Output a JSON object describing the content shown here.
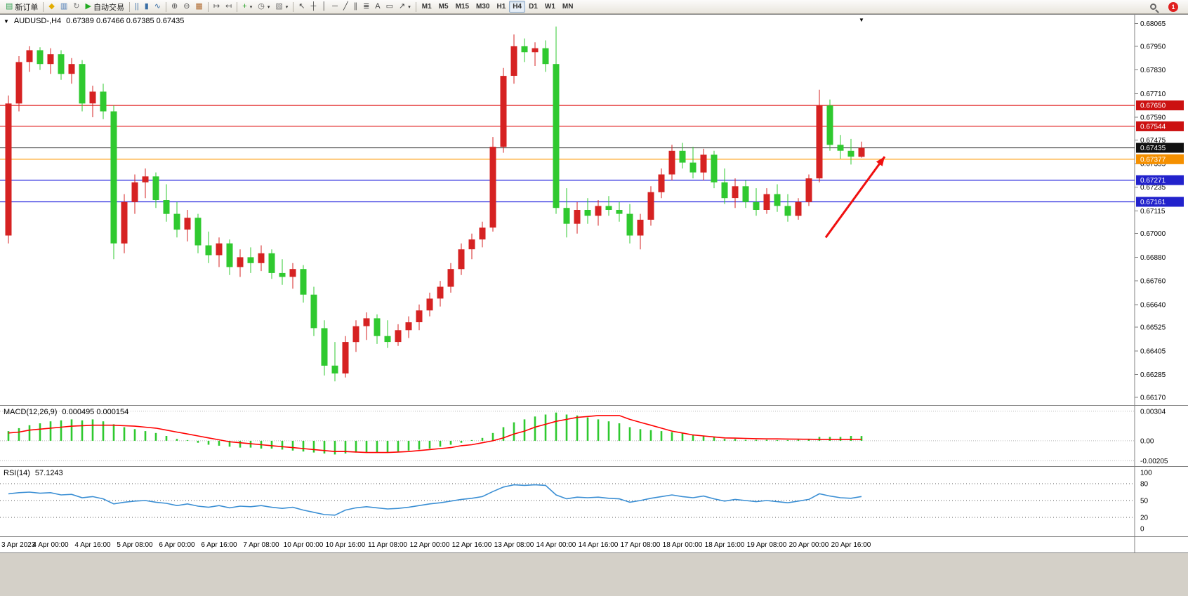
{
  "toolbar": {
    "groups": [
      {
        "items": [
          {
            "name": "new-order-button",
            "glyph": "▤",
            "glyph_color": "#2e9e4f",
            "label": "新订单"
          }
        ]
      },
      {
        "items": [
          {
            "name": "metaeditor-button",
            "glyph": "◆",
            "glyph_color": "#e2ac00"
          },
          {
            "name": "data-window-button",
            "glyph": "▥",
            "glyph_color": "#4a7ab5"
          },
          {
            "name": "refresh-button",
            "glyph": "↻",
            "glyph_color": "#7a7a7a"
          },
          {
            "name": "autotrading-button",
            "glyph": "▶",
            "glyph_color": "#22aa22",
            "label": "自动交易"
          }
        ]
      },
      {
        "items": [
          {
            "name": "bar-chart-button",
            "glyph": "||",
            "glyph_color": "#3a6ea5"
          },
          {
            "name": "candlestick-chart-button",
            "glyph": "▮",
            "glyph_color": "#3a6ea5"
          },
          {
            "name": "line-chart-button",
            "glyph": "∿",
            "glyph_color": "#3a6ea5"
          }
        ]
      },
      {
        "items": [
          {
            "name": "zoom-in-button",
            "glyph": "⊕",
            "glyph_color": "#555555"
          },
          {
            "name": "zoom-out-button",
            "glyph": "⊖",
            "glyph_color": "#555555"
          },
          {
            "name": "tile-windows-button",
            "glyph": "▦",
            "glyph_color": "#b06a30"
          }
        ]
      },
      {
        "items": [
          {
            "name": "auto-scroll-button",
            "glyph": "↦",
            "glyph_color": "#555555"
          },
          {
            "name": "chart-shift-button",
            "glyph": "↤",
            "glyph_color": "#555555"
          }
        ]
      },
      {
        "items": [
          {
            "name": "indicators-button",
            "glyph": "+",
            "glyph_color": "#1f9e1f",
            "caret": "▾"
          },
          {
            "name": "periods-button",
            "glyph": "◷",
            "glyph_color": "#555555",
            "caret": "▾"
          },
          {
            "name": "templates-button",
            "glyph": "▧",
            "glyph_color": "#777777",
            "caret": "▾"
          }
        ]
      },
      {
        "items": [
          {
            "name": "cursor-button",
            "glyph": "↖",
            "glyph_color": "#444444"
          },
          {
            "name": "crosshair-button",
            "glyph": "┼",
            "glyph_color": "#444444"
          },
          {
            "name": "vertical-line-button",
            "glyph": "│",
            "glyph_color": "#444444"
          },
          {
            "name": "horizontal-line-button",
            "glyph": "─",
            "glyph_color": "#444444"
          },
          {
            "name": "trendline-button",
            "glyph": "╱",
            "glyph_color": "#444444"
          },
          {
            "name": "channel-button",
            "glyph": "∥",
            "glyph_color": "#444444"
          },
          {
            "name": "fibonacci-button",
            "glyph": "≣",
            "glyph_color": "#444444"
          },
          {
            "name": "text-button",
            "glyph": "A",
            "glyph_color": "#444444"
          },
          {
            "name": "label-button",
            "glyph": "▭",
            "glyph_color": "#444444"
          },
          {
            "name": "arrows-button",
            "glyph": "↗",
            "glyph_color": "#444444",
            "caret": "▾"
          }
        ]
      },
      {
        "type": "timeframes",
        "items": [
          {
            "name": "timeframe-m1-button",
            "label": "M1"
          },
          {
            "name": "timeframe-m5-button",
            "label": "M5"
          },
          {
            "name": "timeframe-m15-button",
            "label": "M15"
          },
          {
            "name": "timeframe-m30-button",
            "label": "M30"
          },
          {
            "name": "timeframe-h1-button",
            "label": "H1"
          },
          {
            "name": "timeframe-h4-button",
            "label": "H4",
            "active": true
          },
          {
            "name": "timeframe-d1-button",
            "label": "D1"
          },
          {
            "name": "timeframe-w1-button",
            "label": "W1"
          },
          {
            "name": "timeframe-mn-button",
            "label": "MN"
          }
        ]
      },
      {
        "align": "right",
        "items": [
          {
            "name": "search-button",
            "css_icon": "search"
          },
          {
            "name": "notification-button",
            "label": "1",
            "badge": true
          }
        ]
      }
    ]
  },
  "chart": {
    "header": {
      "menu_icon": "▼",
      "symbol": "AUDUSD-,H4",
      "ohlc": "0.67389 0.67466 0.67385 0.67435"
    },
    "price_axis": {
      "ticks": [
        "0.68065",
        "0.67950",
        "0.67830",
        "0.67710",
        "0.67590",
        "0.67475",
        "0.67355",
        "0.67235",
        "0.67115",
        "0.67000",
        "0.66880",
        "0.66760",
        "0.66640",
        "0.66525",
        "0.66405",
        "0.66285",
        "0.66170"
      ]
    },
    "hlines": [
      {
        "name": "resistance-line-upper",
        "price": 0.6765,
        "color": "#e02020",
        "badge": "0.67650",
        "badge_bg": "#cc1111"
      },
      {
        "name": "resistance-line-lower",
        "price": 0.67544,
        "color": "#e02020",
        "badge": "0.67544",
        "badge_bg": "#cc1111"
      },
      {
        "name": "current-price-line",
        "price": 0.67435,
        "color": "#444444",
        "badge": "0.67435",
        "badge_bg": "#111111"
      },
      {
        "name": "pivot-line-orange",
        "price": 0.67377,
        "color": "#ff9900",
        "badge": "0.67377",
        "badge_bg": "#f59000"
      },
      {
        "name": "support-line-upper",
        "price": 0.67271,
        "color": "#2222dd",
        "badge": "0.67271",
        "badge_bg": "#2222cc"
      },
      {
        "name": "support-line-lower",
        "price": 0.67161,
        "color": "#2222dd",
        "badge": "0.67161",
        "badge_bg": "#2222cc"
      }
    ],
    "time_axis": [
      "3 Apr 2023",
      "4 Apr 00:00",
      "4 Apr 16:00",
      "5 Apr 08:00",
      "6 Apr 00:00",
      "6 Apr 16:00",
      "7 Apr 08:00",
      "10 Apr 00:00",
      "10 Apr 16:00",
      "11 Apr 08:00",
      "12 Apr 00:00",
      "12 Apr 16:00",
      "13 Apr 08:00",
      "14 Apr 00:00",
      "14 Apr 16:00",
      "17 Apr 08:00",
      "18 Apr 00:00",
      "18 Apr 16:00",
      "19 Apr 08:00",
      "20 Apr 00:00",
      "20 Apr 16:00"
    ],
    "arrow": {
      "from": {
        "i": 77.6,
        "price": 0.6698
      },
      "to": {
        "i": 83.2,
        "price": 0.6739
      },
      "color": "#f01010"
    },
    "shift_marker": "▼"
  },
  "chart_data": {
    "type": "candlestick",
    "title": "AUDUSD- H4",
    "price_range": {
      "max": 0.6811,
      "min": 0.6613
    },
    "colors": {
      "up": "#d62222",
      "down": "#2fc92f"
    },
    "ohlc": [
      [
        0.6699,
        0.677,
        0.6695,
        0.6766
      ],
      [
        0.6766,
        0.679,
        0.6762,
        0.6787
      ],
      [
        0.6787,
        0.6795,
        0.6782,
        0.6793
      ],
      [
        0.6793,
        0.67945,
        0.6783,
        0.6786
      ],
      [
        0.6786,
        0.6794,
        0.6781,
        0.6791
      ],
      [
        0.6791,
        0.6793,
        0.6778,
        0.6781
      ],
      [
        0.6781,
        0.6789,
        0.6776,
        0.6786
      ],
      [
        0.6786,
        0.6788,
        0.6762,
        0.6766
      ],
      [
        0.6766,
        0.6775,
        0.6759,
        0.6772
      ],
      [
        0.6772,
        0.6776,
        0.6758,
        0.6762
      ],
      [
        0.6762,
        0.6765,
        0.6687,
        0.6695
      ],
      [
        0.6695,
        0.672,
        0.669,
        0.6716
      ],
      [
        0.6716,
        0.673,
        0.671,
        0.6726
      ],
      [
        0.6726,
        0.6733,
        0.6718,
        0.6729
      ],
      [
        0.6729,
        0.6731,
        0.6713,
        0.6717
      ],
      [
        0.6717,
        0.6725,
        0.6706,
        0.671
      ],
      [
        0.671,
        0.6716,
        0.6698,
        0.6702
      ],
      [
        0.6702,
        0.6712,
        0.6696,
        0.6708
      ],
      [
        0.6708,
        0.671,
        0.669,
        0.6694
      ],
      [
        0.6694,
        0.6701,
        0.6685,
        0.6689
      ],
      [
        0.6689,
        0.6698,
        0.6683,
        0.6695
      ],
      [
        0.6695,
        0.6697,
        0.6679,
        0.6683
      ],
      [
        0.6683,
        0.6692,
        0.6678,
        0.6688
      ],
      [
        0.6688,
        0.6693,
        0.668,
        0.6685
      ],
      [
        0.6685,
        0.6694,
        0.6681,
        0.669
      ],
      [
        0.669,
        0.6692,
        0.6677,
        0.668
      ],
      [
        0.668,
        0.6687,
        0.6674,
        0.6678
      ],
      [
        0.6678,
        0.6685,
        0.6672,
        0.6682
      ],
      [
        0.6682,
        0.6684,
        0.6665,
        0.6669
      ],
      [
        0.6669,
        0.6673,
        0.6648,
        0.6652
      ],
      [
        0.6652,
        0.6656,
        0.6628,
        0.6633
      ],
      [
        0.6633,
        0.6645,
        0.6625,
        0.6629
      ],
      [
        0.6629,
        0.6648,
        0.6627,
        0.6645
      ],
      [
        0.6645,
        0.6656,
        0.664,
        0.6653
      ],
      [
        0.6653,
        0.666,
        0.6646,
        0.6657
      ],
      [
        0.6657,
        0.6659,
        0.6644,
        0.6648
      ],
      [
        0.6648,
        0.6656,
        0.6642,
        0.6645
      ],
      [
        0.6645,
        0.6654,
        0.6643,
        0.6651
      ],
      [
        0.6651,
        0.6658,
        0.6647,
        0.6655
      ],
      [
        0.6655,
        0.6664,
        0.6651,
        0.6661
      ],
      [
        0.6661,
        0.667,
        0.6658,
        0.6667
      ],
      [
        0.6667,
        0.6676,
        0.6663,
        0.6673
      ],
      [
        0.6673,
        0.6685,
        0.667,
        0.6682
      ],
      [
        0.6682,
        0.6695,
        0.6679,
        0.6692
      ],
      [
        0.6692,
        0.67,
        0.6687,
        0.6697
      ],
      [
        0.6697,
        0.6706,
        0.6693,
        0.6703
      ],
      [
        0.6703,
        0.6749,
        0.6701,
        0.6744
      ],
      [
        0.6744,
        0.6784,
        0.6741,
        0.678
      ],
      [
        0.678,
        0.6801,
        0.6776,
        0.6795
      ],
      [
        0.6795,
        0.6799,
        0.6787,
        0.6792
      ],
      [
        0.6792,
        0.6797,
        0.6785,
        0.6794
      ],
      [
        0.6794,
        0.6798,
        0.6782,
        0.6786
      ],
      [
        0.6786,
        0.6805,
        0.671,
        0.6713
      ],
      [
        0.6713,
        0.6723,
        0.6698,
        0.6705
      ],
      [
        0.6705,
        0.6716,
        0.67,
        0.6712
      ],
      [
        0.6712,
        0.6718,
        0.6705,
        0.6709
      ],
      [
        0.6709,
        0.6717,
        0.6704,
        0.6714
      ],
      [
        0.6714,
        0.6719,
        0.6709,
        0.6712
      ],
      [
        0.6712,
        0.6716,
        0.6706,
        0.671
      ],
      [
        0.671,
        0.6715,
        0.6695,
        0.6699
      ],
      [
        0.6699,
        0.671,
        0.6692,
        0.6707
      ],
      [
        0.6707,
        0.6724,
        0.6704,
        0.6721
      ],
      [
        0.6721,
        0.6733,
        0.6718,
        0.673
      ],
      [
        0.673,
        0.6745,
        0.6727,
        0.6742
      ],
      [
        0.6742,
        0.6746,
        0.6733,
        0.6736
      ],
      [
        0.6736,
        0.6744,
        0.6728,
        0.6731
      ],
      [
        0.6731,
        0.6743,
        0.6727,
        0.674
      ],
      [
        0.674,
        0.6742,
        0.6723,
        0.6726
      ],
      [
        0.6726,
        0.6733,
        0.6715,
        0.6718
      ],
      [
        0.6718,
        0.6728,
        0.6713,
        0.6724
      ],
      [
        0.6724,
        0.6727,
        0.6713,
        0.6716
      ],
      [
        0.6716,
        0.6723,
        0.6709,
        0.6712
      ],
      [
        0.6712,
        0.6723,
        0.671,
        0.672
      ],
      [
        0.672,
        0.6725,
        0.6711,
        0.6714
      ],
      [
        0.6714,
        0.672,
        0.6706,
        0.6709
      ],
      [
        0.6709,
        0.6718,
        0.6707,
        0.6716
      ],
      [
        0.6716,
        0.673,
        0.6714,
        0.6728
      ],
      [
        0.6728,
        0.6773,
        0.6726,
        0.6765
      ],
      [
        0.6765,
        0.6768,
        0.6742,
        0.6745
      ],
      [
        0.6745,
        0.675,
        0.6738,
        0.6742
      ],
      [
        0.6742,
        0.6748,
        0.6735,
        0.6739
      ],
      [
        0.67389,
        0.67466,
        0.67385,
        0.67435
      ]
    ],
    "macd": {
      "name": "MACD(12,26,9)",
      "current": "0.000495 0.000154",
      "range": {
        "max": 0.0036,
        "min": -0.0026
      },
      "hist_color": "#2fc92f",
      "signal_color": "#ff0000",
      "grid": [
        {
          "v": 0.00304,
          "label": "0.00304"
        },
        {
          "v": 0,
          "label": "0.00"
        },
        {
          "v": -0.00205,
          "label": "-0.00205"
        }
      ],
      "hist": [
        0.001,
        0.0013,
        0.0016,
        0.0018,
        0.002,
        0.0021,
        0.0022,
        0.0021,
        0.0022,
        0.002,
        0.0017,
        0.0014,
        0.0012,
        0.001,
        0.0008,
        0.0005,
        0.0002,
        0.0,
        -0.0002,
        -0.0004,
        -0.0005,
        -0.0006,
        -0.0007,
        -0.0007,
        -0.0008,
        -0.0008,
        -0.0009,
        -0.001,
        -0.0011,
        -0.0012,
        -0.0013,
        -0.0014,
        -0.0013,
        -0.0012,
        -0.0012,
        -0.0012,
        -0.0012,
        -0.0011,
        -0.001,
        -0.0009,
        -0.0008,
        -0.0006,
        -0.0004,
        -0.0002,
        0.0,
        0.0003,
        0.0008,
        0.0014,
        0.0019,
        0.0022,
        0.0025,
        0.0027,
        0.0029,
        0.0027,
        0.0026,
        0.0024,
        0.0022,
        0.002,
        0.0018,
        0.0014,
        0.0012,
        0.0011,
        0.001,
        0.0009,
        0.0008,
        0.0006,
        0.0005,
        0.0004,
        0.0002,
        0.0002,
        0.0001,
        0.0001,
        0.0001,
        0.0,
        0.0,
        0.0001,
        0.0002,
        0.0004,
        0.0004,
        0.0004,
        0.0005,
        0.000495
      ],
      "signal": [
        0.0008,
        0.0009,
        0.0011,
        0.0012,
        0.0013,
        0.0014,
        0.0015,
        0.00155,
        0.0016,
        0.0016,
        0.0016,
        0.00155,
        0.0015,
        0.0014,
        0.0013,
        0.0011,
        0.0009,
        0.0007,
        0.0005,
        0.0003,
        0.0001,
        -0.0001,
        -0.0002,
        -0.0003,
        -0.0004,
        -0.0005,
        -0.0006,
        -0.0007,
        -0.0008,
        -0.0009,
        -0.001,
        -0.0011,
        -0.0011,
        -0.00115,
        -0.0012,
        -0.0012,
        -0.0012,
        -0.00115,
        -0.0011,
        -0.001,
        -0.0009,
        -0.0008,
        -0.0007,
        -0.0005,
        -0.0004,
        -0.0002,
        0.0,
        0.0003,
        0.0007,
        0.001,
        0.0014,
        0.0017,
        0.002,
        0.0022,
        0.0024,
        0.0025,
        0.0026,
        0.0026,
        0.0026,
        0.0022,
        0.0019,
        0.0016,
        0.0013,
        0.001,
        0.0008,
        0.0006,
        0.0005,
        0.0004,
        0.0003,
        0.00028,
        0.00025,
        0.00022,
        0.0002,
        0.0002,
        0.00018,
        0.00017,
        0.00016,
        0.00015,
        0.00015,
        0.00015,
        0.00015,
        0.000154
      ]
    },
    "rsi": {
      "name": "RSI(14)",
      "current": "57.1243",
      "range": {
        "max": 100,
        "min": 0
      },
      "color": "#3b8fd4",
      "grid": [
        {
          "v": 100,
          "label": "100",
          "line": false
        },
        {
          "v": 80,
          "label": "80",
          "line": true
        },
        {
          "v": 50,
          "label": "50",
          "line": true
        },
        {
          "v": 20,
          "label": "20",
          "line": true
        },
        {
          "v": 0,
          "label": "0",
          "line": false
        }
      ],
      "values": [
        62,
        64,
        65,
        63,
        64,
        60,
        61,
        55,
        57,
        53,
        44,
        47,
        49,
        50,
        47,
        45,
        41,
        44,
        40,
        38,
        41,
        37,
        40,
        39,
        41,
        38,
        36,
        38,
        33,
        29,
        25,
        24,
        33,
        37,
        39,
        37,
        35,
        36,
        38,
        41,
        44,
        46,
        49,
        52,
        54,
        57,
        66,
        74,
        78,
        77,
        78,
        77,
        60,
        53,
        56,
        55,
        56,
        54,
        53,
        47,
        50,
        54,
        57,
        60,
        57,
        55,
        58,
        53,
        49,
        52,
        50,
        48,
        50,
        48,
        46,
        49,
        52,
        62,
        58,
        55,
        54,
        57.1
      ]
    }
  }
}
